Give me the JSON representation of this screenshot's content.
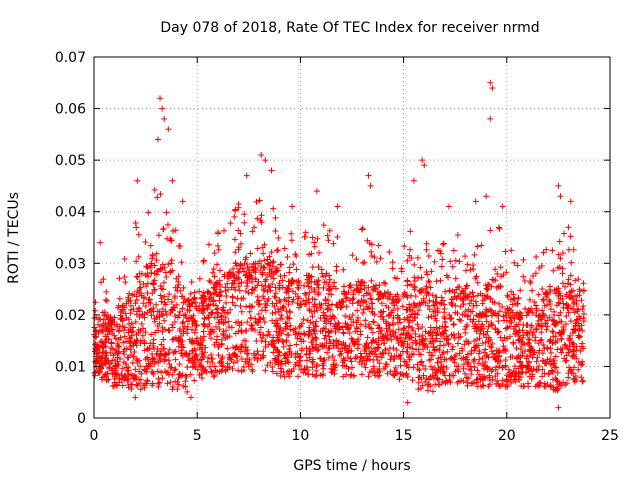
{
  "chart_data": {
    "type": "scatter",
    "title": "Day 078 of 2018, Rate Of TEC Index for receiver nrmd",
    "xlabel": "GPS time / hours",
    "ylabel": "ROTI / TECUs",
    "xlim": [
      0,
      25
    ],
    "ylim": [
      0,
      0.07
    ],
    "xticks": [
      0,
      5,
      10,
      15,
      20,
      25
    ],
    "xtick_labels": [
      "0",
      "5",
      "10",
      "15",
      "20",
      "25"
    ],
    "yticks": [
      0,
      0.01,
      0.02,
      0.03,
      0.04,
      0.05,
      0.06,
      0.07
    ],
    "ytick_labels": [
      "0",
      "0.01",
      "0.02",
      "0.03",
      "0.04",
      "0.05",
      "0.06",
      "0.07"
    ],
    "grid": true,
    "marker": "+",
    "marker_color": "#ff0000",
    "series": [
      {
        "name": "ROTI",
        "envelope": {
          "x": [
            0.0,
            0.5,
            1.0,
            1.5,
            2.0,
            2.5,
            3.0,
            3.5,
            4.0,
            4.5,
            5.0,
            5.5,
            6.0,
            6.5,
            7.0,
            7.5,
            8.0,
            8.5,
            9.0,
            9.5,
            10.0,
            10.5,
            11.0,
            11.5,
            12.0,
            12.5,
            13.0,
            13.5,
            14.0,
            14.5,
            15.0,
            15.5,
            16.0,
            16.5,
            17.0,
            17.5,
            18.0,
            18.5,
            19.0,
            19.5,
            20.0,
            20.5,
            21.0,
            21.5,
            22.0,
            22.5,
            23.0,
            23.5
          ],
          "low": [
            0.008,
            0.007,
            0.006,
            0.006,
            0.005,
            0.005,
            0.006,
            0.006,
            0.005,
            0.005,
            0.007,
            0.008,
            0.008,
            0.009,
            0.009,
            0.009,
            0.009,
            0.009,
            0.008,
            0.008,
            0.008,
            0.008,
            0.008,
            0.008,
            0.008,
            0.008,
            0.008,
            0.008,
            0.008,
            0.008,
            0.007,
            0.006,
            0.005,
            0.005,
            0.006,
            0.006,
            0.006,
            0.006,
            0.006,
            0.006,
            0.006,
            0.006,
            0.006,
            0.006,
            0.006,
            0.005,
            0.006,
            0.007
          ],
          "high": [
            0.025,
            0.028,
            0.025,
            0.031,
            0.038,
            0.042,
            0.046,
            0.041,
            0.038,
            0.032,
            0.032,
            0.034,
            0.036,
            0.038,
            0.042,
            0.043,
            0.046,
            0.043,
            0.038,
            0.037,
            0.036,
            0.038,
            0.039,
            0.037,
            0.034,
            0.035,
            0.037,
            0.036,
            0.033,
            0.032,
            0.034,
            0.038,
            0.036,
            0.033,
            0.034,
            0.035,
            0.037,
            0.033,
            0.036,
            0.038,
            0.034,
            0.032,
            0.031,
            0.032,
            0.034,
            0.036,
            0.038,
            0.029
          ]
        },
        "peaks": [
          {
            "x": 0.3,
            "y": 0.034
          },
          {
            "x": 2.1,
            "y": 0.046
          },
          {
            "x": 3.2,
            "y": 0.062
          },
          {
            "x": 3.3,
            "y": 0.06
          },
          {
            "x": 3.4,
            "y": 0.058
          },
          {
            "x": 3.6,
            "y": 0.056
          },
          {
            "x": 3.1,
            "y": 0.054
          },
          {
            "x": 3.8,
            "y": 0.046
          },
          {
            "x": 4.3,
            "y": 0.042
          },
          {
            "x": 6.8,
            "y": 0.039
          },
          {
            "x": 7.4,
            "y": 0.047
          },
          {
            "x": 8.1,
            "y": 0.051
          },
          {
            "x": 8.3,
            "y": 0.05
          },
          {
            "x": 8.6,
            "y": 0.048
          },
          {
            "x": 9.6,
            "y": 0.041
          },
          {
            "x": 10.8,
            "y": 0.044
          },
          {
            "x": 11.8,
            "y": 0.041
          },
          {
            "x": 13.3,
            "y": 0.047
          },
          {
            "x": 13.4,
            "y": 0.045
          },
          {
            "x": 15.5,
            "y": 0.046
          },
          {
            "x": 15.9,
            "y": 0.05
          },
          {
            "x": 16.0,
            "y": 0.049
          },
          {
            "x": 17.2,
            "y": 0.041
          },
          {
            "x": 18.5,
            "y": 0.042
          },
          {
            "x": 19.0,
            "y": 0.043
          },
          {
            "x": 19.2,
            "y": 0.065
          },
          {
            "x": 19.3,
            "y": 0.064
          },
          {
            "x": 19.2,
            "y": 0.058
          },
          {
            "x": 19.8,
            "y": 0.041
          },
          {
            "x": 22.5,
            "y": 0.045
          },
          {
            "x": 22.6,
            "y": 0.043
          },
          {
            "x": 23.1,
            "y": 0.042
          },
          {
            "x": 15.2,
            "y": 0.003
          },
          {
            "x": 22.5,
            "y": 0.002
          },
          {
            "x": 2.0,
            "y": 0.004
          },
          {
            "x": 4.7,
            "y": 0.004
          }
        ]
      }
    ]
  }
}
